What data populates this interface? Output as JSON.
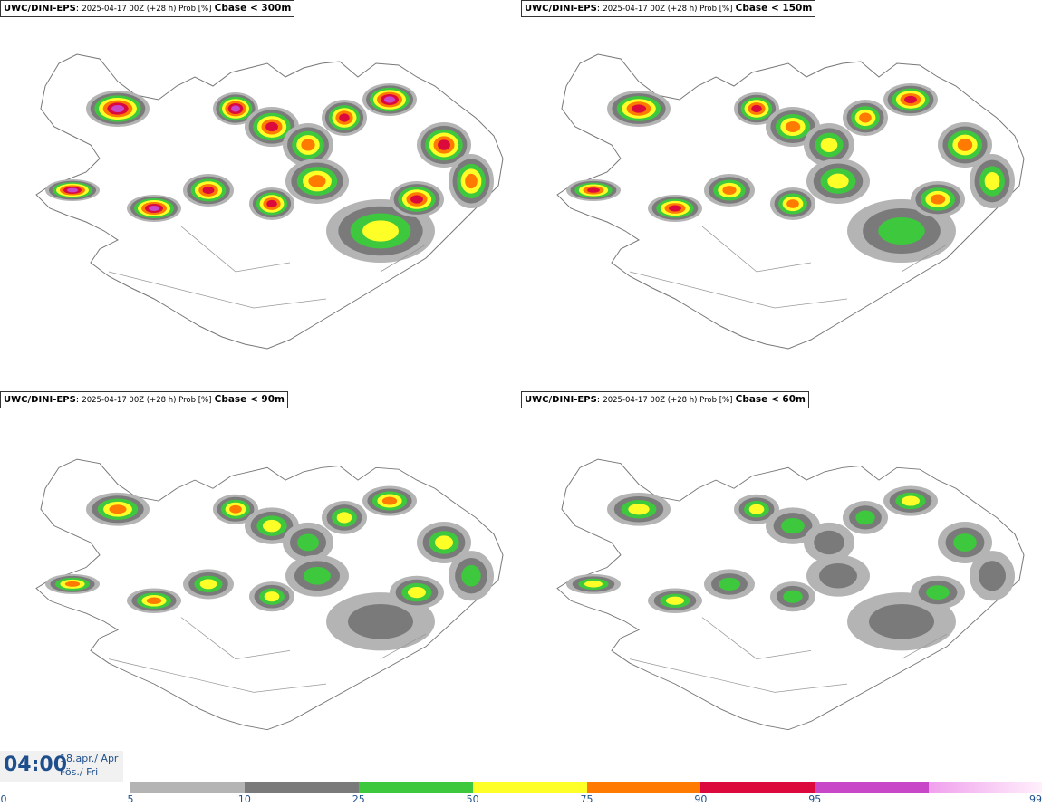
{
  "panels": [
    {
      "model": "UWC/DINI-EPS",
      "meta": "2025-04-17 00Z (+28 h) Prob [%]",
      "var": "Cbase < 300m"
    },
    {
      "model": "UWC/DINI-EPS",
      "meta": "2025-04-17 00Z (+28 h) Prob [%]",
      "var": "Cbase < 150m"
    },
    {
      "model": "UWC/DINI-EPS",
      "meta": "2025-04-17 00Z (+28 h) Prob [%]",
      "var": "Cbase < 90m"
    },
    {
      "model": "UWC/DINI-EPS",
      "meta": "2025-04-17 00Z (+28 h) Prob [%]",
      "var": "Cbase < 60m"
    }
  ],
  "time": {
    "hour": "04:00",
    "date": "18.apr./ Apr",
    "day": "Fös./ Fri"
  },
  "legend": {
    "ticks": [
      "0",
      "5",
      "10",
      "25",
      "50",
      "75",
      "90",
      "95",
      "99"
    ],
    "colors": [
      "#ffffff",
      "#b4b4b4",
      "#7a7a7a",
      "#3dc83d",
      "#ffff28",
      "#ff7a00",
      "#dc0a3c",
      "#c846c8",
      "#f5b4f0"
    ]
  }
}
